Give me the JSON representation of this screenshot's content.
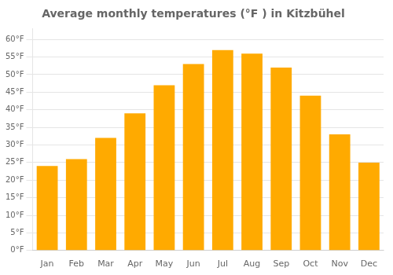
{
  "chart_data": {
    "type": "bar",
    "title": "Average monthly temperatures (°F ) in Kitzbühel",
    "categories": [
      "Jan",
      "Feb",
      "Mar",
      "Apr",
      "May",
      "Jun",
      "Jul",
      "Aug",
      "Sep",
      "Oct",
      "Nov",
      "Dec"
    ],
    "values": [
      24,
      26,
      32,
      39,
      47,
      53,
      57,
      56,
      52,
      44,
      33,
      25
    ],
    "color": "#FFAA00",
    "ylim": [
      0,
      63
    ],
    "yticks": [
      {
        "value": 0,
        "label": "0°F"
      },
      {
        "value": 5,
        "label": "5°F"
      },
      {
        "value": 10,
        "label": "10°F"
      },
      {
        "value": 15,
        "label": "15°F"
      },
      {
        "value": 20,
        "label": "20°F"
      },
      {
        "value": 25,
        "label": "25°F"
      },
      {
        "value": 30,
        "label": "30°F"
      },
      {
        "value": 35,
        "label": "35°F"
      },
      {
        "value": 40,
        "label": "40°F"
      },
      {
        "value": 45,
        "label": "45°F"
      },
      {
        "value": 50,
        "label": "50°F"
      },
      {
        "value": 55,
        "label": "55°F"
      },
      {
        "value": 60,
        "label": "60°F"
      }
    ],
    "grid": true
  }
}
